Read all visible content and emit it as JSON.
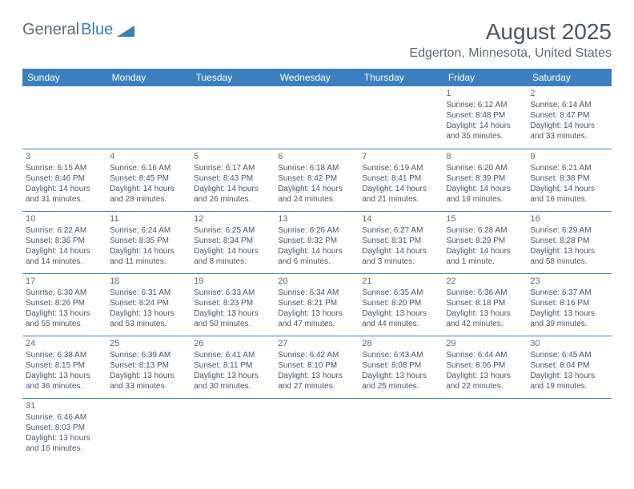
{
  "logo": {
    "text1": "General",
    "text2": "Blue"
  },
  "title": "August 2025",
  "location": "Edgerton, Minnesota, United States",
  "colors": {
    "header_bg": "#3b7fbf",
    "header_text": "#ffffff",
    "text": "#4b5660",
    "mute": "#5f6a72",
    "border": "#3b7fbf",
    "background": "#ffffff"
  },
  "weekdays": [
    "Sunday",
    "Monday",
    "Tuesday",
    "Wednesday",
    "Thursday",
    "Friday",
    "Saturday"
  ],
  "weeks": [
    [
      null,
      null,
      null,
      null,
      null,
      {
        "num": "1",
        "sunrise": "Sunrise: 6:12 AM",
        "sunset": "Sunset: 8:48 PM",
        "daylight": "Daylight: 14 hours and 35 minutes."
      },
      {
        "num": "2",
        "sunrise": "Sunrise: 6:14 AM",
        "sunset": "Sunset: 8:47 PM",
        "daylight": "Daylight: 14 hours and 33 minutes."
      }
    ],
    [
      {
        "num": "3",
        "sunrise": "Sunrise: 6:15 AM",
        "sunset": "Sunset: 8:46 PM",
        "daylight": "Daylight: 14 hours and 31 minutes."
      },
      {
        "num": "4",
        "sunrise": "Sunrise: 6:16 AM",
        "sunset": "Sunset: 8:45 PM",
        "daylight": "Daylight: 14 hours and 28 minutes."
      },
      {
        "num": "5",
        "sunrise": "Sunrise: 6:17 AM",
        "sunset": "Sunset: 8:43 PM",
        "daylight": "Daylight: 14 hours and 26 minutes."
      },
      {
        "num": "6",
        "sunrise": "Sunrise: 6:18 AM",
        "sunset": "Sunset: 8:42 PM",
        "daylight": "Daylight: 14 hours and 24 minutes."
      },
      {
        "num": "7",
        "sunrise": "Sunrise: 6:19 AM",
        "sunset": "Sunset: 8:41 PM",
        "daylight": "Daylight: 14 hours and 21 minutes."
      },
      {
        "num": "8",
        "sunrise": "Sunrise: 6:20 AM",
        "sunset": "Sunset: 8:39 PM",
        "daylight": "Daylight: 14 hours and 19 minutes."
      },
      {
        "num": "9",
        "sunrise": "Sunrise: 6:21 AM",
        "sunset": "Sunset: 8:38 PM",
        "daylight": "Daylight: 14 hours and 16 minutes."
      }
    ],
    [
      {
        "num": "10",
        "sunrise": "Sunrise: 6:22 AM",
        "sunset": "Sunset: 8:36 PM",
        "daylight": "Daylight: 14 hours and 14 minutes."
      },
      {
        "num": "11",
        "sunrise": "Sunrise: 6:24 AM",
        "sunset": "Sunset: 8:35 PM",
        "daylight": "Daylight: 14 hours and 11 minutes."
      },
      {
        "num": "12",
        "sunrise": "Sunrise: 6:25 AM",
        "sunset": "Sunset: 8:34 PM",
        "daylight": "Daylight: 14 hours and 8 minutes."
      },
      {
        "num": "13",
        "sunrise": "Sunrise: 6:26 AM",
        "sunset": "Sunset: 8:32 PM",
        "daylight": "Daylight: 14 hours and 6 minutes."
      },
      {
        "num": "14",
        "sunrise": "Sunrise: 6:27 AM",
        "sunset": "Sunset: 8:31 PM",
        "daylight": "Daylight: 14 hours and 3 minutes."
      },
      {
        "num": "15",
        "sunrise": "Sunrise: 6:28 AM",
        "sunset": "Sunset: 8:29 PM",
        "daylight": "Daylight: 14 hours and 1 minute."
      },
      {
        "num": "16",
        "sunrise": "Sunrise: 6:29 AM",
        "sunset": "Sunset: 8:28 PM",
        "daylight": "Daylight: 13 hours and 58 minutes."
      }
    ],
    [
      {
        "num": "17",
        "sunrise": "Sunrise: 6:30 AM",
        "sunset": "Sunset: 8:26 PM",
        "daylight": "Daylight: 13 hours and 55 minutes."
      },
      {
        "num": "18",
        "sunrise": "Sunrise: 6:31 AM",
        "sunset": "Sunset: 8:24 PM",
        "daylight": "Daylight: 13 hours and 53 minutes."
      },
      {
        "num": "19",
        "sunrise": "Sunrise: 6:33 AM",
        "sunset": "Sunset: 8:23 PM",
        "daylight": "Daylight: 13 hours and 50 minutes."
      },
      {
        "num": "20",
        "sunrise": "Sunrise: 6:34 AM",
        "sunset": "Sunset: 8:21 PM",
        "daylight": "Daylight: 13 hours and 47 minutes."
      },
      {
        "num": "21",
        "sunrise": "Sunrise: 6:35 AM",
        "sunset": "Sunset: 8:20 PM",
        "daylight": "Daylight: 13 hours and 44 minutes."
      },
      {
        "num": "22",
        "sunrise": "Sunrise: 6:36 AM",
        "sunset": "Sunset: 8:18 PM",
        "daylight": "Daylight: 13 hours and 42 minutes."
      },
      {
        "num": "23",
        "sunrise": "Sunrise: 6:37 AM",
        "sunset": "Sunset: 8:16 PM",
        "daylight": "Daylight: 13 hours and 39 minutes."
      }
    ],
    [
      {
        "num": "24",
        "sunrise": "Sunrise: 6:38 AM",
        "sunset": "Sunset: 8:15 PM",
        "daylight": "Daylight: 13 hours and 36 minutes."
      },
      {
        "num": "25",
        "sunrise": "Sunrise: 6:39 AM",
        "sunset": "Sunset: 8:13 PM",
        "daylight": "Daylight: 13 hours and 33 minutes."
      },
      {
        "num": "26",
        "sunrise": "Sunrise: 6:41 AM",
        "sunset": "Sunset: 8:11 PM",
        "daylight": "Daylight: 13 hours and 30 minutes."
      },
      {
        "num": "27",
        "sunrise": "Sunrise: 6:42 AM",
        "sunset": "Sunset: 8:10 PM",
        "daylight": "Daylight: 13 hours and 27 minutes."
      },
      {
        "num": "28",
        "sunrise": "Sunrise: 6:43 AM",
        "sunset": "Sunset: 8:08 PM",
        "daylight": "Daylight: 13 hours and 25 minutes."
      },
      {
        "num": "29",
        "sunrise": "Sunrise: 6:44 AM",
        "sunset": "Sunset: 8:06 PM",
        "daylight": "Daylight: 13 hours and 22 minutes."
      },
      {
        "num": "30",
        "sunrise": "Sunrise: 6:45 AM",
        "sunset": "Sunset: 8:04 PM",
        "daylight": "Daylight: 13 hours and 19 minutes."
      }
    ],
    [
      {
        "num": "31",
        "sunrise": "Sunrise: 6:46 AM",
        "sunset": "Sunset: 8:03 PM",
        "daylight": "Daylight: 13 hours and 16 minutes."
      },
      null,
      null,
      null,
      null,
      null,
      null
    ]
  ]
}
